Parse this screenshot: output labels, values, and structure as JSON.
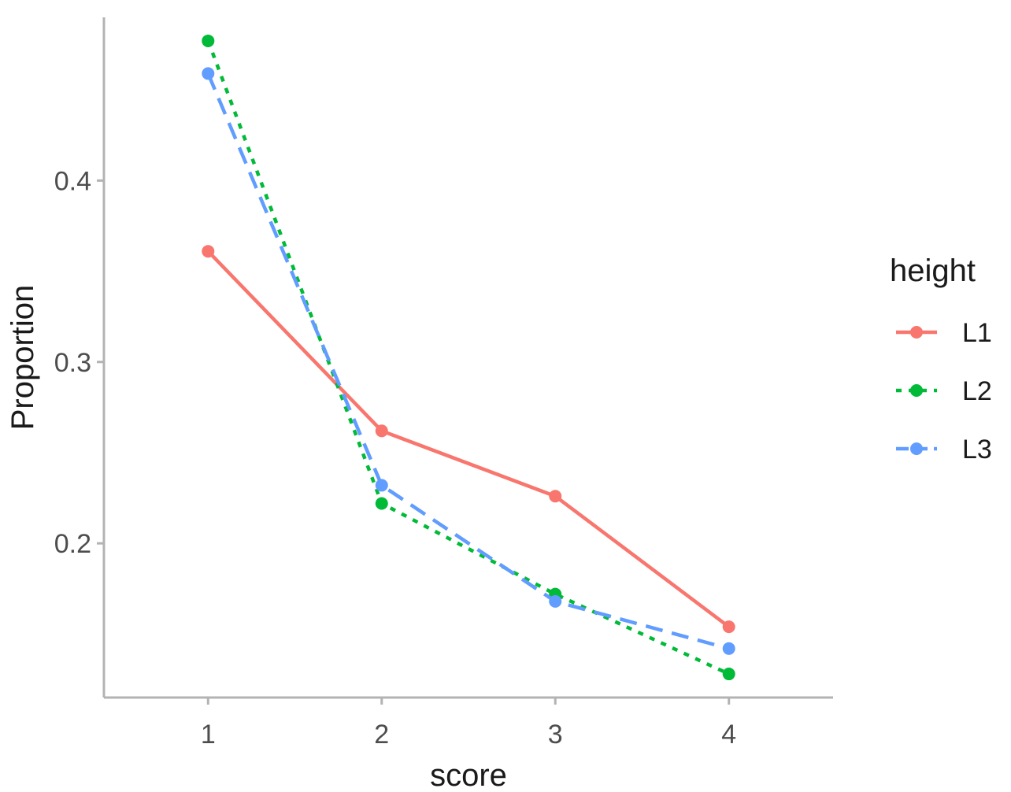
{
  "chart_data": {
    "type": "line",
    "title": "",
    "xlabel": "score",
    "ylabel": "Proportion",
    "x": [
      1,
      2,
      3,
      4
    ],
    "xlim": [
      0.4,
      4.6
    ],
    "ylim": [
      0.115,
      0.49
    ],
    "x_ticks": [
      1,
      2,
      3,
      4
    ],
    "x_tick_labels": [
      "1",
      "2",
      "3",
      "4"
    ],
    "y_ticks": [
      0.2,
      0.3,
      0.4
    ],
    "y_tick_labels": [
      "0.2",
      "0.3",
      "0.4"
    ],
    "grid": false,
    "legend": {
      "title": "height",
      "placement": "right"
    },
    "series": [
      {
        "name": "L1",
        "values": [
          0.361,
          0.262,
          0.226,
          0.154
        ],
        "color": "#F8766D",
        "line_style": "solid"
      },
      {
        "name": "L2",
        "values": [
          0.477,
          0.222,
          0.172,
          0.128
        ],
        "color": "#00BA38",
        "line_style": "dotted"
      },
      {
        "name": "L3",
        "values": [
          0.459,
          0.232,
          0.168,
          0.142
        ],
        "color": "#619CFF",
        "line_style": "dashed"
      }
    ]
  }
}
